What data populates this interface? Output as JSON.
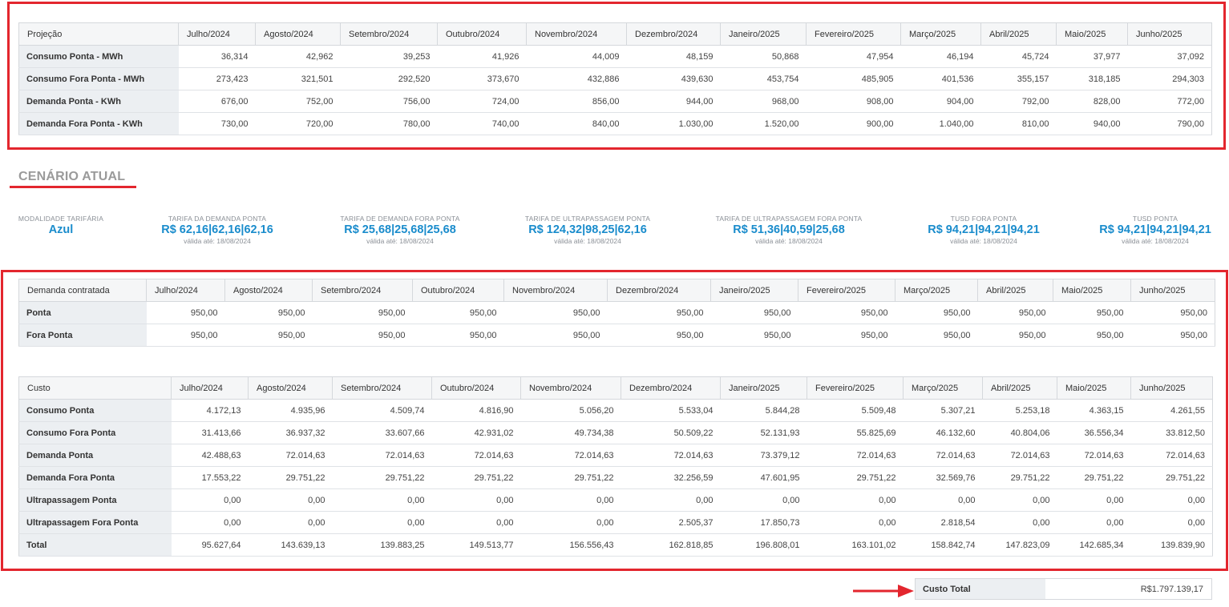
{
  "months": [
    "Julho/2024",
    "Agosto/2024",
    "Setembro/2024",
    "Outubro/2024",
    "Novembro/2024",
    "Dezembro/2024",
    "Janeiro/2025",
    "Fevereiro/2025",
    "Março/2025",
    "Abril/2025",
    "Maio/2025",
    "Junho/2025"
  ],
  "projecao": {
    "header": "Projeção",
    "rows": [
      {
        "label": "Consumo Ponta - MWh",
        "values": [
          "36,314",
          "42,962",
          "39,253",
          "41,926",
          "44,009",
          "48,159",
          "50,868",
          "47,954",
          "46,194",
          "45,724",
          "37,977",
          "37,092"
        ]
      },
      {
        "label": "Consumo Fora Ponta - MWh",
        "values": [
          "273,423",
          "321,501",
          "292,520",
          "373,670",
          "432,886",
          "439,630",
          "453,754",
          "485,905",
          "401,536",
          "355,157",
          "318,185",
          "294,303"
        ]
      },
      {
        "label": "Demanda Ponta - KWh",
        "values": [
          "676,00",
          "752,00",
          "756,00",
          "724,00",
          "856,00",
          "944,00",
          "968,00",
          "908,00",
          "904,00",
          "792,00",
          "828,00",
          "772,00"
        ]
      },
      {
        "label": "Demanda Fora Ponta - KWh",
        "values": [
          "730,00",
          "720,00",
          "780,00",
          "740,00",
          "840,00",
          "1.030,00",
          "1.520,00",
          "900,00",
          "1.040,00",
          "810,00",
          "940,00",
          "790,00"
        ]
      }
    ]
  },
  "cenario": {
    "title": "CENÁRIO ATUAL",
    "tarifas": [
      {
        "caption": "MODALIDADE TARIFÁRIA",
        "value": "Azul",
        "sub": ""
      },
      {
        "caption": "TARIFA DA DEMANDA PONTA",
        "value": "R$ 62,16|62,16|62,16",
        "sub": "válida até: 18/08/2024"
      },
      {
        "caption": "TARIFA DE DEMANDA FORA PONTA",
        "value": "R$ 25,68|25,68|25,68",
        "sub": "válida até: 18/08/2024"
      },
      {
        "caption": "TARIFA DE ULTRAPASSAGEM PONTA",
        "value": "R$ 124,32|98,25|62,16",
        "sub": "válida até: 18/08/2024"
      },
      {
        "caption": "TARIFA DE ULTRAPASSAGEM FORA PONTA",
        "value": "R$ 51,36|40,59|25,68",
        "sub": "válida até: 18/08/2024"
      },
      {
        "caption": "TUSD FORA PONTA",
        "value": "R$ 94,21|94,21|94,21",
        "sub": "válida até: 18/08/2024"
      },
      {
        "caption": "TUSD PONTA",
        "value": "R$ 94,21|94,21|94,21",
        "sub": "válida até: 18/08/2024"
      }
    ]
  },
  "demanda": {
    "header": "Demanda contratada",
    "rows": [
      {
        "label": "Ponta",
        "values": [
          "950,00",
          "950,00",
          "950,00",
          "950,00",
          "950,00",
          "950,00",
          "950,00",
          "950,00",
          "950,00",
          "950,00",
          "950,00",
          "950,00"
        ]
      },
      {
        "label": "Fora Ponta",
        "values": [
          "950,00",
          "950,00",
          "950,00",
          "950,00",
          "950,00",
          "950,00",
          "950,00",
          "950,00",
          "950,00",
          "950,00",
          "950,00",
          "950,00"
        ]
      }
    ]
  },
  "custo": {
    "header": "Custo",
    "rows": [
      {
        "label": "Consumo Ponta",
        "values": [
          "4.172,13",
          "4.935,96",
          "4.509,74",
          "4.816,90",
          "5.056,20",
          "5.533,04",
          "5.844,28",
          "5.509,48",
          "5.307,21",
          "5.253,18",
          "4.363,15",
          "4.261,55"
        ]
      },
      {
        "label": "Consumo Fora Ponta",
        "values": [
          "31.413,66",
          "36.937,32",
          "33.607,66",
          "42.931,02",
          "49.734,38",
          "50.509,22",
          "52.131,93",
          "55.825,69",
          "46.132,60",
          "40.804,06",
          "36.556,34",
          "33.812,50"
        ]
      },
      {
        "label": "Demanda Ponta",
        "values": [
          "42.488,63",
          "72.014,63",
          "72.014,63",
          "72.014,63",
          "72.014,63",
          "72.014,63",
          "73.379,12",
          "72.014,63",
          "72.014,63",
          "72.014,63",
          "72.014,63",
          "72.014,63"
        ]
      },
      {
        "label": "Demanda Fora Ponta",
        "values": [
          "17.553,22",
          "29.751,22",
          "29.751,22",
          "29.751,22",
          "29.751,22",
          "32.256,59",
          "47.601,95",
          "29.751,22",
          "32.569,76",
          "29.751,22",
          "29.751,22",
          "29.751,22"
        ]
      },
      {
        "label": "Ultrapassagem Ponta",
        "values": [
          "0,00",
          "0,00",
          "0,00",
          "0,00",
          "0,00",
          "0,00",
          "0,00",
          "0,00",
          "0,00",
          "0,00",
          "0,00",
          "0,00"
        ]
      },
      {
        "label": "Ultrapassagem Fora Ponta",
        "values": [
          "0,00",
          "0,00",
          "0,00",
          "0,00",
          "0,00",
          "2.505,37",
          "17.850,73",
          "0,00",
          "2.818,54",
          "0,00",
          "0,00",
          "0,00"
        ]
      },
      {
        "label": "Total",
        "values": [
          "95.627,64",
          "143.639,13",
          "139.883,25",
          "149.513,77",
          "156.556,43",
          "162.818,85",
          "196.808,01",
          "163.101,02",
          "158.842,74",
          "147.823,09",
          "142.685,34",
          "139.839,90"
        ]
      }
    ]
  },
  "custo_total": {
    "label": "Custo Total",
    "value": "R$1.797.139,17"
  },
  "colors": {
    "highlight": "#e3262e",
    "accent": "#1a8ccc"
  }
}
